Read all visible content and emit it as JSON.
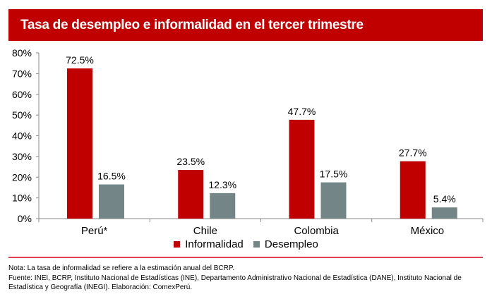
{
  "chart_data": {
    "type": "bar",
    "title": "Tasa de desempleo e informalidad en el tercer trimestre",
    "categories": [
      "Perú*",
      "Chile",
      "Colombia",
      "México"
    ],
    "series": [
      {
        "name": "Informalidad",
        "color": "#c00000",
        "values": [
          72.5,
          23.5,
          47.7,
          27.7
        ],
        "labels": [
          "72.5%",
          "23.5%",
          "47.7%",
          "27.7%"
        ]
      },
      {
        "name": "Desempleo",
        "color": "#738586",
        "values": [
          16.5,
          12.3,
          17.5,
          5.4
        ],
        "labels": [
          "16.5%",
          "12.3%",
          "17.5%",
          "5.4%"
        ]
      }
    ],
    "ylim": [
      0,
      80
    ],
    "yticks": [
      "0%",
      "10%",
      "20%",
      "30%",
      "40%",
      "50%",
      "60%",
      "70%",
      "80%"
    ],
    "legend": "bottom",
    "grid": false
  },
  "notes": {
    "nota": "Nota: La tasa de informalidad se refiere a la estimación anual del BCRP.",
    "fuente": "Fuente: INEI, BCRP, Instituto Nacional de Estadísticas (INE), Departamento Administrativo Nacional de Estadística (DANE), Instituto Nacional de Estadística y Geografía (INEGI). Elaboración: ComexPerú."
  }
}
